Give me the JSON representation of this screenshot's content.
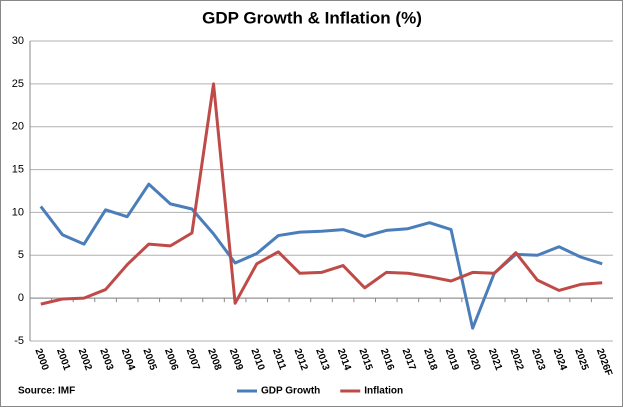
{
  "chart_data": {
    "type": "line",
    "title": "GDP Growth & Inflation (%)",
    "source": "Source: IMF",
    "categories": [
      "2000",
      "2001",
      "2002",
      "2003",
      "2004",
      "2005",
      "2006",
      "2007",
      "2008",
      "2009",
      "2010",
      "2011",
      "2012",
      "2013",
      "2014",
      "2015",
      "2016",
      "2017",
      "2018",
      "2019",
      "2020",
      "2021",
      "2022",
      "2023",
      "2024",
      "2025",
      "2026F"
    ],
    "series": [
      {
        "name": "GDP Growth",
        "color": "#4a7ebb",
        "values": [
          10.7,
          7.4,
          6.3,
          10.3,
          9.5,
          13.3,
          11.0,
          10.4,
          7.5,
          4.1,
          5.2,
          7.3,
          7.7,
          7.8,
          8.0,
          7.2,
          7.9,
          8.1,
          8.8,
          8.0,
          -3.5,
          2.9,
          5.1,
          5.0,
          6.0,
          4.8,
          4.0
        ]
      },
      {
        "name": "Inflation",
        "color": "#be4b48",
        "values": [
          -0.7,
          -0.1,
          0.0,
          1.0,
          3.9,
          6.3,
          6.1,
          7.6,
          25.0,
          -0.6,
          4.0,
          5.4,
          2.9,
          3.0,
          3.8,
          1.2,
          3.0,
          2.9,
          2.5,
          2.0,
          3.0,
          2.9,
          5.3,
          2.1,
          0.9,
          1.6,
          1.8
        ]
      }
    ],
    "ylim": [
      -5,
      30
    ],
    "yticks": [
      -5,
      0,
      5,
      10,
      15,
      20,
      25,
      30
    ],
    "grid": true,
    "legend": "bottom"
  }
}
